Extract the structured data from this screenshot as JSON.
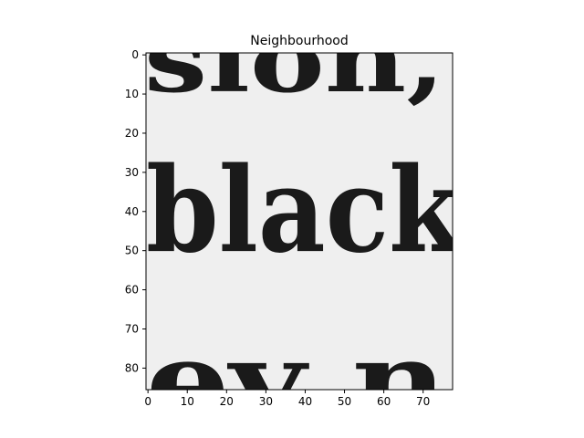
{
  "figure": {
    "title": "Neighbourhood",
    "image_size": {
      "cols": 78,
      "rows": 86
    },
    "xticks": [
      0,
      10,
      20,
      30,
      40,
      50,
      60,
      70
    ],
    "yticks": [
      0,
      10,
      20,
      30,
      40,
      50,
      60,
      70,
      80
    ],
    "depicted_text": {
      "line1": "sion,",
      "line2": "black",
      "line3": "ev  n"
    },
    "colormap": "gray",
    "background": "#f0f0f0",
    "ink": "#1a1a1a"
  }
}
